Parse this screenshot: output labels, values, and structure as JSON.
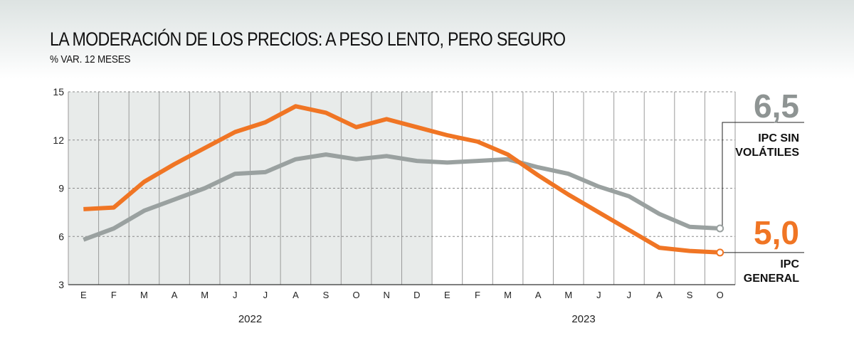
{
  "header": {
    "title": "LA MODERACIÓN DE LOS PRECIOS: A PESO LENTO, PERO SEGURO",
    "subtitle": "% VAR. 12 MESES"
  },
  "colors": {
    "general": "#f07524",
    "sin_volatiles": "#9aa1a0",
    "shade_2022": "#e8ebea"
  },
  "chart_data": {
    "type": "line",
    "categories": [
      "E",
      "F",
      "M",
      "A",
      "M",
      "J",
      "J",
      "A",
      "S",
      "O",
      "N",
      "D",
      "E",
      "F",
      "M",
      "A",
      "M",
      "J",
      "J",
      "A",
      "S",
      "O"
    ],
    "years": [
      {
        "label": "2022",
        "start": 0,
        "end": 11
      },
      {
        "label": "2023",
        "start": 12,
        "end": 21
      }
    ],
    "ylim": [
      3,
      15
    ],
    "yticks": [
      3,
      6,
      9,
      12,
      15
    ],
    "grid": true,
    "series": [
      {
        "key": "general",
        "name_line1": "IPC",
        "name_line2": "GENERAL",
        "last_value_label": "5,0",
        "values": [
          7.7,
          7.8,
          9.4,
          10.5,
          11.5,
          12.5,
          13.1,
          14.1,
          13.7,
          12.8,
          13.3,
          12.8,
          12.3,
          11.9,
          11.1,
          9.8,
          8.6,
          7.5,
          6.4,
          5.3,
          5.1,
          5.0
        ]
      },
      {
        "key": "sin_volatiles",
        "name_line1": "IPC SIN",
        "name_line2": "VOLÁTILES",
        "last_value_label": "6,5",
        "values": [
          5.8,
          6.5,
          7.6,
          8.3,
          9.0,
          9.9,
          10.0,
          10.8,
          11.1,
          10.8,
          11.0,
          10.7,
          10.6,
          10.7,
          10.8,
          10.3,
          9.9,
          9.1,
          8.5,
          7.4,
          6.6,
          6.5
        ]
      }
    ]
  }
}
